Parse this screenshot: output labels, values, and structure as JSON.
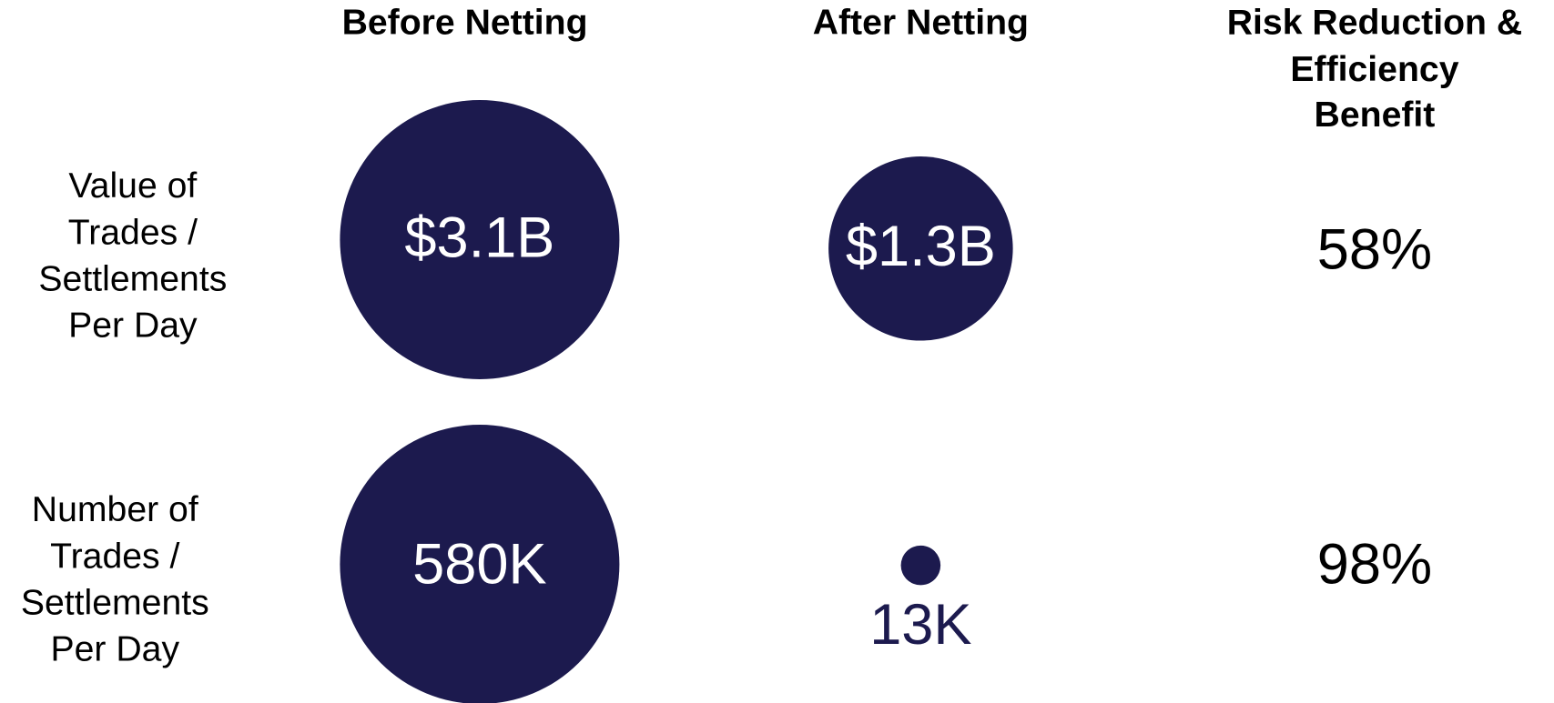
{
  "header": {
    "columns": [
      [
        "Before Netting"
      ],
      [
        "After Netting"
      ],
      [
        "Risk Reduction &",
        "Efficiency",
        "Benefit"
      ]
    ]
  },
  "rows": [
    {
      "label": [
        "Value of",
        "Trades /",
        "Settlements",
        "Per Day"
      ],
      "before": "$3.1B",
      "after": "$1.3B",
      "benefit": "58%"
    },
    {
      "label": [
        "Number of",
        "Trades /",
        "Settlements",
        "Per Day"
      ],
      "before": "580K",
      "after": "13K",
      "benefit": "98%"
    }
  ]
}
